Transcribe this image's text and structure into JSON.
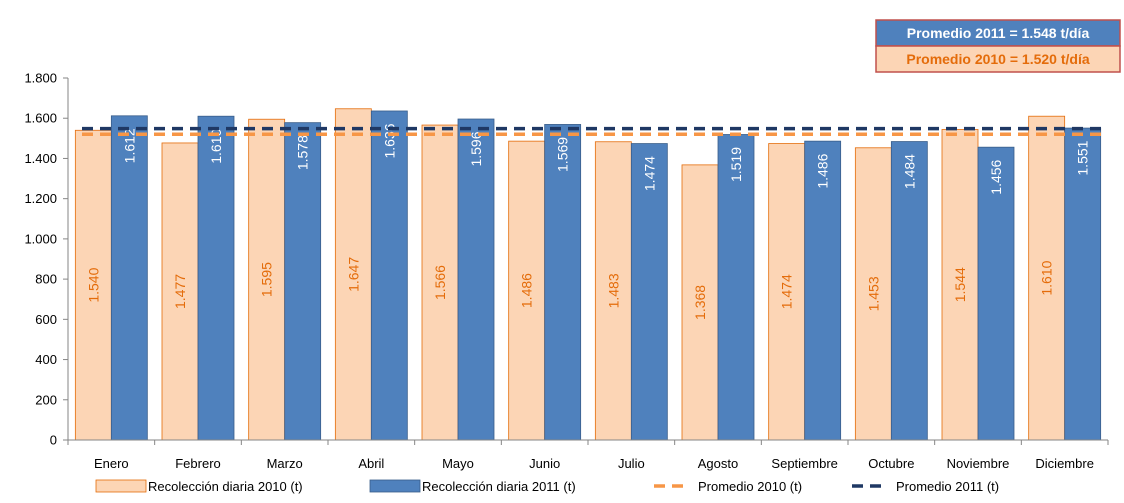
{
  "chart_data": {
    "type": "bar",
    "categories": [
      "Enero",
      "Febrero",
      "Marzo",
      "Abril",
      "Mayo",
      "Junio",
      "Julio",
      "Agosto",
      "Septiembre",
      "Octubre",
      "Noviembre",
      "Diciembre"
    ],
    "series": [
      {
        "name": "Recolección diaria 2010 (t)",
        "color": "#FCD5B5",
        "border": "#E46C0A",
        "values": [
          1540,
          1477,
          1595,
          1647,
          1566,
          1486,
          1483,
          1368,
          1474,
          1453,
          1544,
          1610
        ],
        "labels": [
          "1.540",
          "1.477",
          "1.595",
          "1.647",
          "1.566",
          "1.486",
          "1.483",
          "1.368",
          "1.474",
          "1.453",
          "1.544",
          "1.610"
        ]
      },
      {
        "name": "Recolección diaria  2011 (t)",
        "color": "#4F81BD",
        "border": "#385D8A",
        "values": [
          1612,
          1610,
          1578,
          1636,
          1596,
          1569,
          1474,
          1519,
          1486,
          1484,
          1456,
          1551
        ],
        "labels": [
          "1.612",
          "1.610",
          "1.578",
          "1.636",
          "1.596",
          "1.569",
          "1.474",
          "1.519",
          "1.486",
          "1.484",
          "1.456",
          "1.551"
        ]
      }
    ],
    "lines": [
      {
        "name": "Promedio 2010 (t)",
        "value": 1520,
        "color": "#F79646",
        "style": "dashed"
      },
      {
        "name": "Promedio 2011 (t)",
        "value": 1548,
        "color": "#1F3864",
        "style": "dashed"
      }
    ],
    "ylim": [
      0,
      1800
    ],
    "yticks": [
      0,
      200,
      400,
      600,
      800,
      1000,
      1200,
      1400,
      1600,
      1800
    ],
    "ytick_labels": [
      "0",
      "200",
      "400",
      "600",
      "800",
      "1.000",
      "1.200",
      "1.400",
      "1.600",
      "1.800"
    ],
    "legend_position": "bottom",
    "grid": false,
    "annotations": [
      {
        "text": "Promedio 2011 = 1.548 t/día",
        "background": "#4F81BD",
        "text_color": "#ffffff",
        "border": "#C0504D"
      },
      {
        "text": "Promedio 2010 = 1.520 t/día",
        "background": "#FCD5B5",
        "text_color": "#E46C0A",
        "border": "#C0504D"
      }
    ]
  }
}
